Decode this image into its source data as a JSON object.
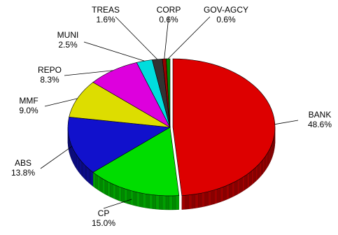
{
  "chart_data": {
    "type": "pie",
    "style": "3d-exploded-depth",
    "title": "",
    "legend": "none",
    "slices": [
      {
        "label": "BANK",
        "value": 48.6,
        "value_label": "48.6%",
        "color": "#dd0000"
      },
      {
        "label": "CP",
        "value": 15.0,
        "value_label": "15.0%",
        "color": "#00dd00"
      },
      {
        "label": "ABS",
        "value": 13.8,
        "value_label": "13.8%",
        "color": "#1111cc"
      },
      {
        "label": "MMF",
        "value": 9.0,
        "value_label": "9.0%",
        "color": "#dddd00"
      },
      {
        "label": "REPO",
        "value": 8.3,
        "value_label": "8.3%",
        "color": "#dd00dd"
      },
      {
        "label": "MUNI",
        "value": 2.5,
        "value_label": "2.5%",
        "color": "#00dddd"
      },
      {
        "label": "TREAS",
        "value": 1.6,
        "value_label": "1.6%",
        "color": "#333333"
      },
      {
        "label": "CORP",
        "value": 0.6,
        "value_label": "0.6%",
        "color": "#990000"
      },
      {
        "label": "GOV-AGCY",
        "value": 0.6,
        "value_label": "0.6%",
        "color": "#008800"
      }
    ]
  }
}
